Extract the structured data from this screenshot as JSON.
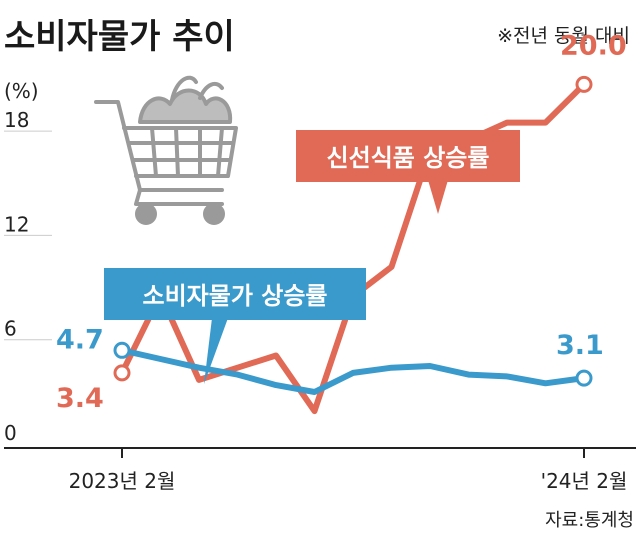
{
  "title": "소비자물가 추이",
  "note": "※전년 동월 대비",
  "source": "자료:통계청",
  "colors": {
    "food": "#e06a55",
    "cpi": "#3a9acc",
    "axis": "#222222",
    "grid": "#cccccc"
  },
  "icon": "shopping-cart-icon",
  "chart_data": {
    "type": "line",
    "ylabel": "(%)",
    "ylim": [
      0,
      21
    ],
    "yticks": [
      "0",
      "6",
      "12",
      "18"
    ],
    "x": [
      "2023-02",
      "2023-03",
      "2023-04",
      "2023-05",
      "2023-06",
      "2023-07",
      "2023-08",
      "2023-09",
      "2023-10",
      "2023-11",
      "2023-12",
      "2024-01",
      "2024-02"
    ],
    "xtick_labels": [
      "2023년 2월",
      "'24년 2월"
    ],
    "series": [
      {
        "name": "신선식품 상승률",
        "color": "#e06a55",
        "values": [
          3.4,
          7.9,
          3.0,
          3.7,
          4.4,
          1.2,
          7.8,
          9.5,
          16.2,
          16.8,
          17.8,
          17.8,
          20.0
        ],
        "start_label": "3.4",
        "end_label": "20.0"
      },
      {
        "name": "소비자물가 상승률",
        "color": "#3a9acc",
        "values": [
          4.7,
          4.2,
          3.7,
          3.3,
          2.7,
          2.3,
          3.4,
          3.7,
          3.8,
          3.3,
          3.2,
          2.8,
          3.1
        ],
        "start_label": "4.7",
        "end_label": "3.1"
      }
    ]
  }
}
